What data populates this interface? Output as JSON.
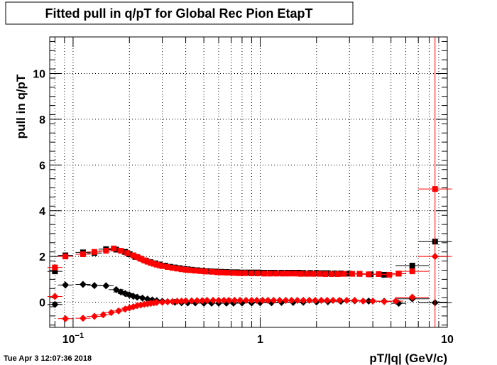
{
  "timestamp": "Tue Apr  3 12:07:36 2018",
  "chart_data": {
    "type": "scatter",
    "title": "Fitted pull in q/pT for Global Rec Pion EtapT",
    "xlabel": "pT/|q| (GeV/c)",
    "ylabel": "pull in q/pT",
    "x_scale": "log",
    "xlim": [
      0.075,
      10
    ],
    "ylim": [
      -1.1,
      11.6
    ],
    "grid": true,
    "x_ticks": [
      {
        "value": 0.1,
        "label": "10",
        "exponent": "−1"
      },
      {
        "value": 1,
        "label": "1",
        "exponent": ""
      },
      {
        "value": 10,
        "label": "10",
        "exponent": ""
      }
    ],
    "y_ticks": [
      0,
      2,
      4,
      6,
      8,
      10
    ],
    "series": [
      {
        "marker": "square",
        "color": "#000000",
        "points": [
          [
            0.08,
            1.35
          ],
          [
            0.091,
            2.05
          ],
          [
            0.113,
            2.18
          ],
          [
            0.13,
            2.15
          ],
          [
            0.15,
            2.32
          ],
          [
            0.17,
            2.3
          ],
          [
            0.19,
            2.2
          ],
          [
            0.2,
            2.1
          ],
          [
            0.215,
            1.98
          ],
          [
            0.23,
            1.9
          ],
          [
            0.245,
            1.82
          ],
          [
            0.26,
            1.75
          ],
          [
            0.275,
            1.7
          ],
          [
            0.29,
            1.65
          ],
          [
            0.31,
            1.6
          ],
          [
            0.33,
            1.55
          ],
          [
            0.35,
            1.52
          ],
          [
            0.37,
            1.49
          ],
          [
            0.39,
            1.46
          ],
          [
            0.41,
            1.44
          ],
          [
            0.43,
            1.42
          ],
          [
            0.46,
            1.4
          ],
          [
            0.49,
            1.38
          ],
          [
            0.52,
            1.36
          ],
          [
            0.55,
            1.35
          ],
          [
            0.58,
            1.34
          ],
          [
            0.62,
            1.33
          ],
          [
            0.66,
            1.32
          ],
          [
            0.7,
            1.31
          ],
          [
            0.75,
            1.31
          ],
          [
            0.8,
            1.3
          ],
          [
            0.86,
            1.3
          ],
          [
            0.92,
            1.3
          ],
          [
            0.98,
            1.3
          ],
          [
            1.05,
            1.29
          ],
          [
            1.13,
            1.29
          ],
          [
            1.2,
            1.29
          ],
          [
            1.3,
            1.29
          ],
          [
            1.4,
            1.29
          ],
          [
            1.5,
            1.29
          ],
          [
            1.6,
            1.29
          ],
          [
            1.7,
            1.28
          ],
          [
            1.85,
            1.28
          ],
          [
            2.0,
            1.28
          ],
          [
            2.15,
            1.27
          ],
          [
            2.3,
            1.27
          ],
          [
            2.5,
            1.26
          ],
          [
            2.7,
            1.26
          ],
          [
            3.0,
            1.25
          ],
          [
            3.4,
            1.24
          ],
          [
            3.9,
            1.22
          ],
          [
            4.6,
            1.2
          ],
          [
            5.5,
            1.25
          ],
          [
            6.5,
            1.6
          ],
          [
            8.6,
            2.65
          ]
        ]
      },
      {
        "marker": "diamond",
        "color": "#000000",
        "points": [
          [
            0.08,
            -0.1
          ],
          [
            0.091,
            0.75
          ],
          [
            0.113,
            0.78
          ],
          [
            0.13,
            0.73
          ],
          [
            0.15,
            0.72
          ],
          [
            0.17,
            0.55
          ],
          [
            0.18,
            0.45
          ],
          [
            0.19,
            0.38
          ],
          [
            0.2,
            0.32
          ],
          [
            0.21,
            0.26
          ],
          [
            0.22,
            0.22
          ],
          [
            0.235,
            0.18
          ],
          [
            0.25,
            0.14
          ],
          [
            0.265,
            0.1
          ],
          [
            0.28,
            0.07
          ],
          [
            0.3,
            0.04
          ],
          [
            0.32,
            0.02
          ],
          [
            0.35,
            0.0
          ],
          [
            0.38,
            -0.02
          ],
          [
            0.41,
            -0.03
          ],
          [
            0.45,
            -0.03
          ],
          [
            0.5,
            -0.04
          ],
          [
            0.55,
            -0.04
          ],
          [
            0.6,
            -0.04
          ],
          [
            0.66,
            -0.04
          ],
          [
            0.72,
            -0.04
          ],
          [
            0.8,
            -0.03
          ],
          [
            0.9,
            -0.03
          ],
          [
            1.0,
            -0.02
          ],
          [
            1.15,
            -0.02
          ],
          [
            1.3,
            -0.01
          ],
          [
            1.5,
            -0.01
          ],
          [
            1.7,
            0.0
          ],
          [
            2.0,
            0.01
          ],
          [
            2.3,
            0.02
          ],
          [
            2.7,
            0.04
          ],
          [
            3.2,
            0.06
          ],
          [
            3.8,
            0.05
          ],
          [
            4.6,
            0.04
          ],
          [
            5.5,
            -0.05
          ],
          [
            6.5,
            0.15
          ],
          [
            8.6,
            -0.02
          ]
        ]
      },
      {
        "marker": "square",
        "color": "#ff0000",
        "points": [
          [
            0.08,
            1.52
          ],
          [
            0.091,
            2.0
          ],
          [
            0.113,
            2.1
          ],
          [
            0.13,
            2.2
          ],
          [
            0.15,
            2.25
          ],
          [
            0.165,
            2.35
          ],
          [
            0.18,
            2.25
          ],
          [
            0.195,
            2.15
          ],
          [
            0.21,
            2.05
          ],
          [
            0.22,
            1.98
          ],
          [
            0.23,
            1.9
          ],
          [
            0.24,
            1.83
          ],
          [
            0.25,
            1.77
          ],
          [
            0.26,
            1.72
          ],
          [
            0.27,
            1.68
          ],
          [
            0.28,
            1.64
          ],
          [
            0.29,
            1.61
          ],
          [
            0.3,
            1.58
          ],
          [
            0.32,
            1.54
          ],
          [
            0.34,
            1.5
          ],
          [
            0.36,
            1.47
          ],
          [
            0.38,
            1.44
          ],
          [
            0.4,
            1.42
          ],
          [
            0.42,
            1.4
          ],
          [
            0.45,
            1.38
          ],
          [
            0.48,
            1.36
          ],
          [
            0.51,
            1.34
          ],
          [
            0.55,
            1.33
          ],
          [
            0.59,
            1.31
          ],
          [
            0.63,
            1.3
          ],
          [
            0.67,
            1.29
          ],
          [
            0.72,
            1.28
          ],
          [
            0.77,
            1.27
          ],
          [
            0.83,
            1.27
          ],
          [
            0.9,
            1.26
          ],
          [
            0.97,
            1.26
          ],
          [
            1.05,
            1.25
          ],
          [
            1.13,
            1.25
          ],
          [
            1.22,
            1.25
          ],
          [
            1.32,
            1.25
          ],
          [
            1.42,
            1.25
          ],
          [
            1.53,
            1.25
          ],
          [
            1.65,
            1.24
          ],
          [
            1.78,
            1.24
          ],
          [
            1.92,
            1.24
          ],
          [
            2.07,
            1.24
          ],
          [
            2.23,
            1.23
          ],
          [
            2.41,
            1.23
          ],
          [
            2.6,
            1.23
          ],
          [
            2.8,
            1.24
          ],
          [
            3.1,
            1.24
          ],
          [
            3.4,
            1.24
          ],
          [
            3.8,
            1.22
          ],
          [
            4.3,
            1.23
          ],
          [
            4.9,
            1.2
          ],
          [
            5.5,
            1.25
          ],
          [
            6.5,
            1.35
          ],
          [
            8.6,
            4.95
          ]
        ]
      },
      {
        "marker": "diamond",
        "color": "#ff0000",
        "points": [
          [
            0.08,
            0.25
          ],
          [
            0.091,
            -0.72
          ],
          [
            0.113,
            -0.7
          ],
          [
            0.13,
            -0.62
          ],
          [
            0.145,
            -0.55
          ],
          [
            0.16,
            -0.45
          ],
          [
            0.175,
            -0.38
          ],
          [
            0.19,
            -0.3
          ],
          [
            0.2,
            -0.25
          ],
          [
            0.21,
            -0.2
          ],
          [
            0.22,
            -0.15
          ],
          [
            0.23,
            -0.12
          ],
          [
            0.24,
            -0.09
          ],
          [
            0.25,
            -0.07
          ],
          [
            0.26,
            -0.05
          ],
          [
            0.27,
            -0.03
          ],
          [
            0.28,
            -0.01
          ],
          [
            0.3,
            0.0
          ],
          [
            0.32,
            0.02
          ],
          [
            0.34,
            0.03
          ],
          [
            0.36,
            0.04
          ],
          [
            0.38,
            0.05
          ],
          [
            0.4,
            0.06
          ],
          [
            0.43,
            0.06
          ],
          [
            0.46,
            0.07
          ],
          [
            0.49,
            0.07
          ],
          [
            0.52,
            0.08
          ],
          [
            0.56,
            0.08
          ],
          [
            0.6,
            0.08
          ],
          [
            0.64,
            0.08
          ],
          [
            0.68,
            0.08
          ],
          [
            0.73,
            0.08
          ],
          [
            0.78,
            0.08
          ],
          [
            0.84,
            0.08
          ],
          [
            0.9,
            0.08
          ],
          [
            0.96,
            0.08
          ],
          [
            1.03,
            0.08
          ],
          [
            1.1,
            0.08
          ],
          [
            1.18,
            0.08
          ],
          [
            1.27,
            0.08
          ],
          [
            1.37,
            0.08
          ],
          [
            1.47,
            0.08
          ],
          [
            1.58,
            0.08
          ],
          [
            1.7,
            0.08
          ],
          [
            1.83,
            0.08
          ],
          [
            1.97,
            0.08
          ],
          [
            2.12,
            0.08
          ],
          [
            2.28,
            0.08
          ],
          [
            2.45,
            0.08
          ],
          [
            2.65,
            0.08
          ],
          [
            2.9,
            0.08
          ],
          [
            3.2,
            0.08
          ],
          [
            3.55,
            0.05
          ],
          [
            4.0,
            0.05
          ],
          [
            4.6,
            0.03
          ],
          [
            5.3,
            0.05
          ],
          [
            6.5,
            0.22
          ],
          [
            8.6,
            2.0
          ]
        ]
      }
    ]
  }
}
